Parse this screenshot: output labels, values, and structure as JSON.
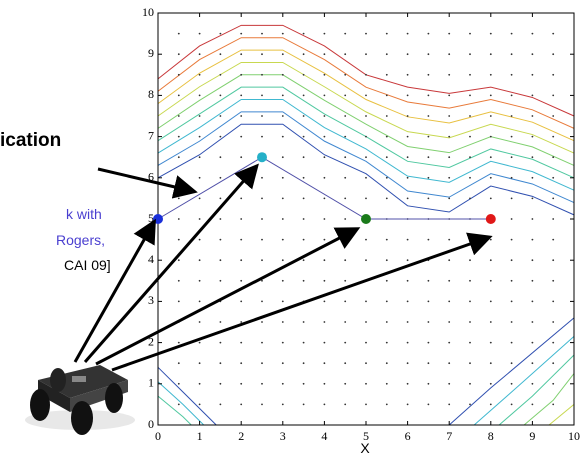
{
  "chart_data": {
    "type": "line",
    "xlabel": "X",
    "xlim": [
      0,
      10
    ],
    "ylim": [
      0,
      10
    ],
    "xticks": [
      0,
      1,
      2,
      3,
      4,
      5,
      6,
      7,
      8,
      9,
      10
    ],
    "yticks": [
      0,
      1,
      2,
      3,
      4,
      5,
      6,
      7,
      8,
      9,
      10
    ],
    "series": [
      {
        "color": "#5050a8",
        "x": [
          0,
          2.5,
          5,
          8
        ],
        "values": [
          5,
          6.5,
          5,
          5
        ],
        "point_colors": [
          "#1a2fd8",
          "#25b0c8",
          "#1a7a1a",
          "#e01818"
        ]
      }
    ],
    "annotations": [
      "ication",
      "k with",
      "Rogers,",
      "CAI 09]"
    ]
  }
}
